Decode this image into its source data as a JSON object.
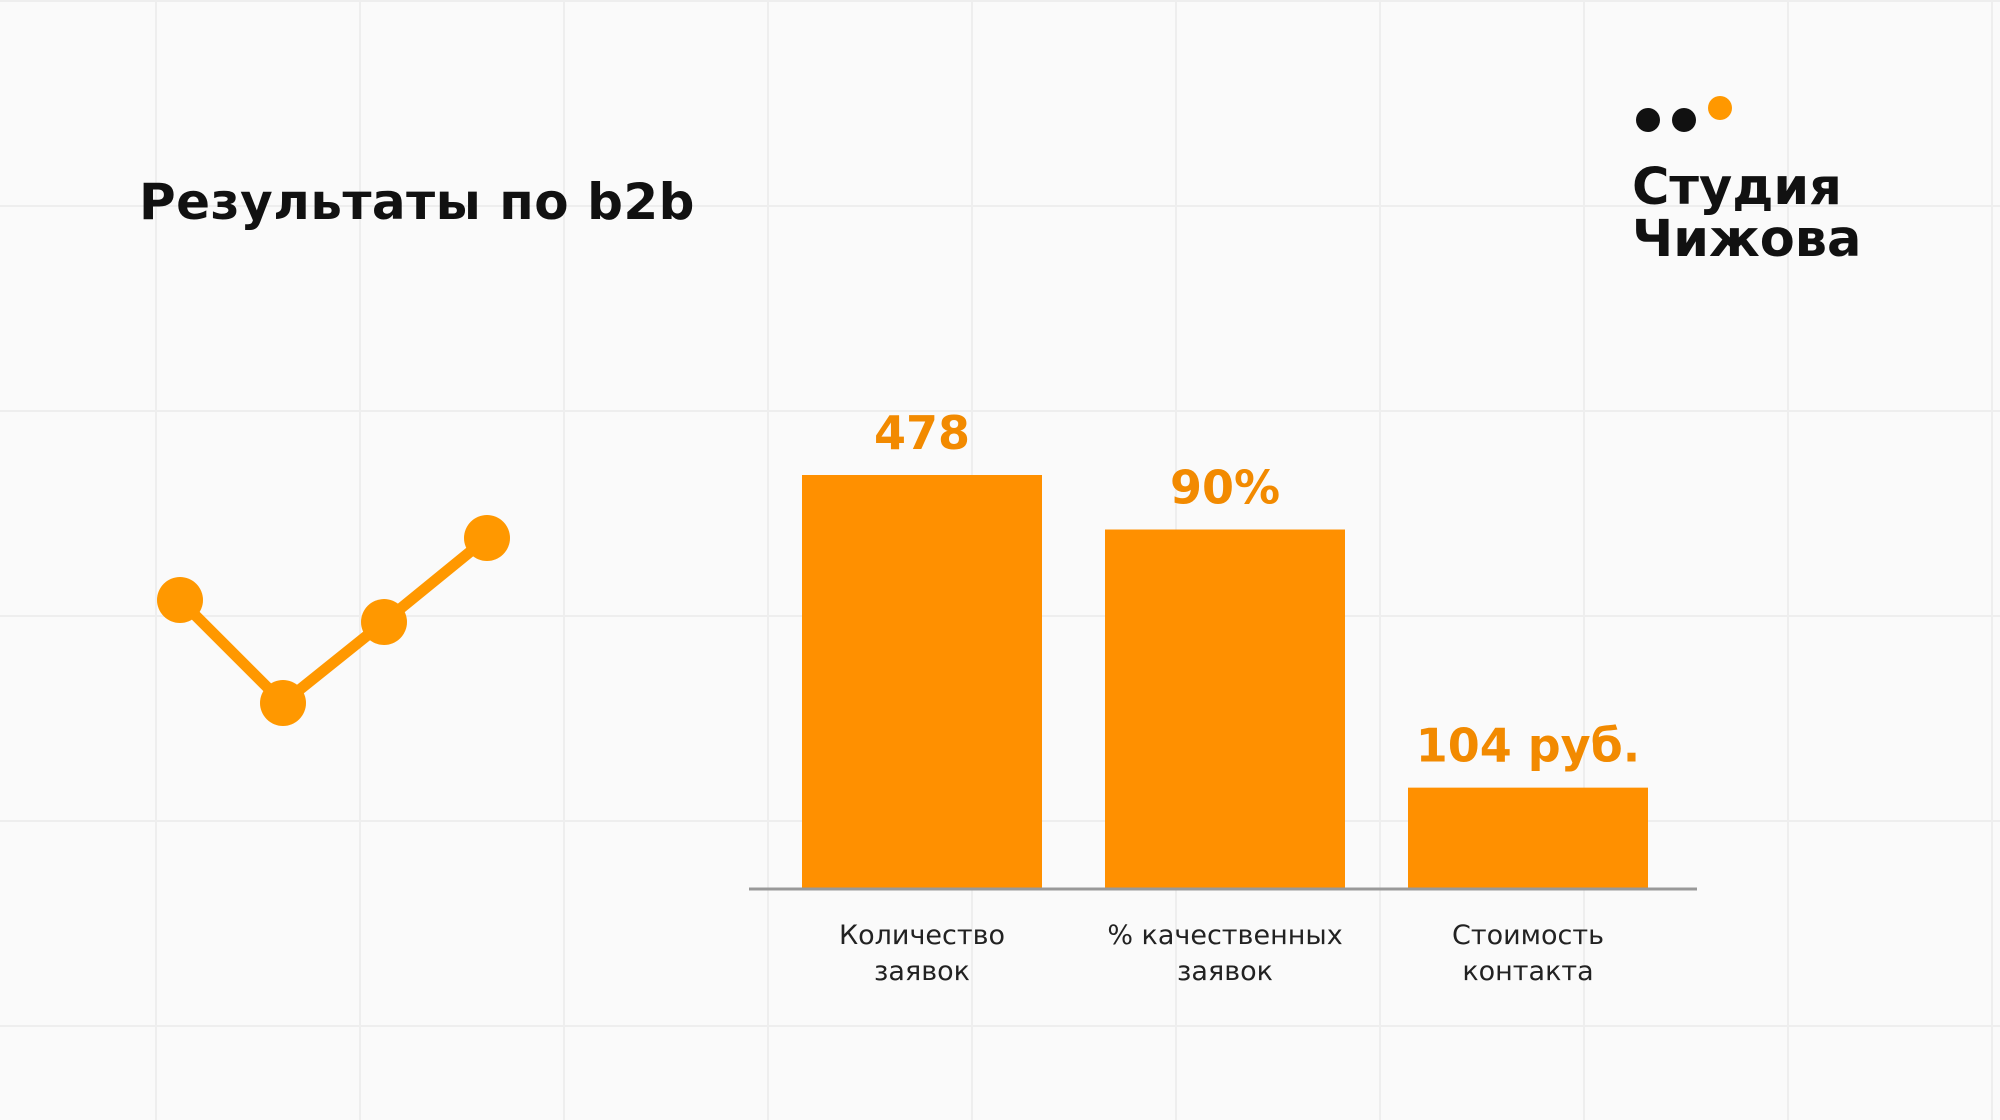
{
  "slide": {
    "title": "Результаты по b2b"
  },
  "logo": {
    "line1": "Студия",
    "line2": "Чижова",
    "dot_colors": [
      "#111111",
      "#111111",
      "#ff9800"
    ]
  },
  "decor": {
    "trend_icon": "line-trend-icon",
    "trend_color": "#ff9800"
  },
  "colors": {
    "accent": "#ff9000",
    "label_orange": "#f28a00",
    "text": "#222222",
    "axis": "#999999"
  },
  "chart_data": {
    "type": "bar",
    "title": "",
    "xlabel": "",
    "ylabel": "",
    "categories": [
      [
        "Количество",
        "заявок"
      ],
      [
        "% качественных",
        "заявок"
      ],
      [
        "Стоимость",
        "контакта"
      ]
    ],
    "values": [
      478,
      90,
      104
    ],
    "value_labels": [
      "478",
      "90%",
      "104 руб."
    ],
    "relative_heights": [
      1.0,
      0.868,
      0.243
    ],
    "grid": false,
    "legend": "none"
  }
}
